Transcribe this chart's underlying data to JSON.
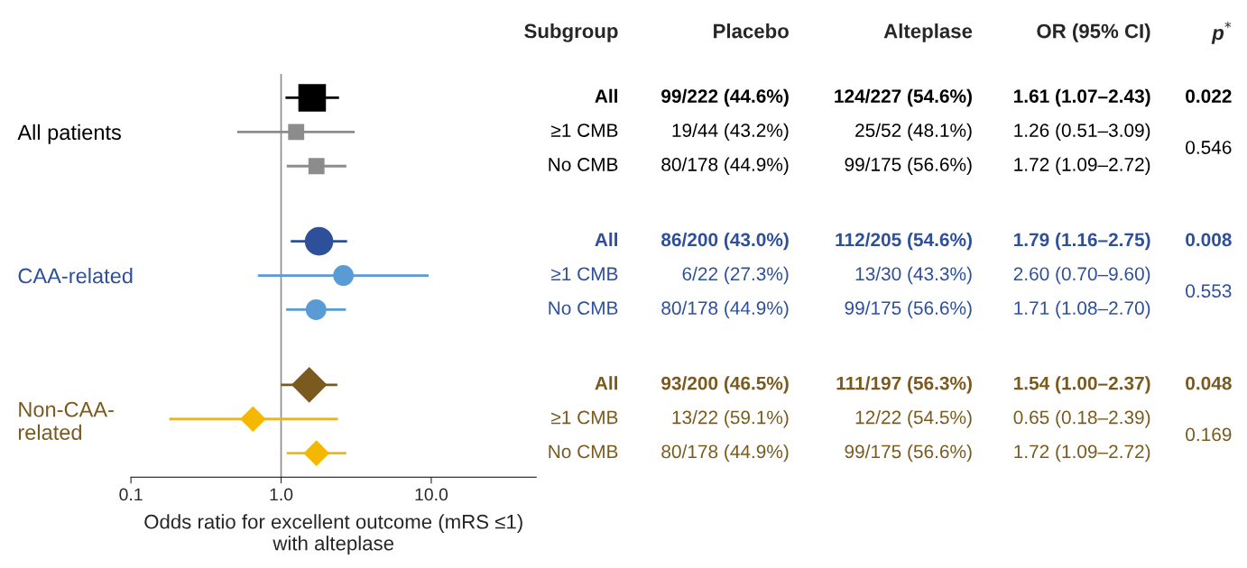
{
  "chart_data": {
    "type": "scatter",
    "orientation": "horizontal",
    "categories": [
      "All",
      "≥1 CMB",
      "No CMB",
      "All",
      "≥1 CMB",
      "No CMB",
      "All",
      "≥1 CMB",
      "No CMB"
    ],
    "series": [
      {
        "name": "All patients",
        "marker": "square",
        "colors": [
          "#000000",
          "#8c8c8c",
          "#8c8c8c",
          null,
          null,
          null,
          null,
          null,
          null
        ],
        "values": [
          1.61,
          1.26,
          1.72,
          null,
          null,
          null,
          null,
          null,
          null
        ],
        "sizes": [
          1,
          0.34,
          0.34,
          null,
          null,
          null,
          null,
          null,
          null
        ],
        "errors": [
          [
            1.07,
            2.43
          ],
          [
            0.51,
            3.09
          ],
          [
            1.09,
            2.72
          ],
          null,
          null,
          null,
          null,
          null,
          null
        ]
      },
      {
        "name": "CAA-related",
        "marker": "circle",
        "colors": [
          null,
          null,
          null,
          "#2e4f9a",
          "#5b9bd5",
          "#5b9bd5",
          null,
          null,
          null
        ],
        "values": [
          null,
          null,
          null,
          1.79,
          2.6,
          1.71,
          null,
          null,
          null
        ],
        "sizes": [
          null,
          null,
          null,
          0.84,
          0.44,
          0.44,
          null,
          null,
          null
        ],
        "errors": [
          null,
          null,
          null,
          [
            1.16,
            2.75
          ],
          [
            0.7,
            9.6
          ],
          [
            1.08,
            2.7
          ],
          null,
          null,
          null
        ]
      },
      {
        "name": "Non-CAA-related",
        "marker": "diamond",
        "colors": [
          null,
          null,
          null,
          null,
          null,
          null,
          "#7a5a1e",
          "#f5b800",
          "#f5b800"
        ],
        "values": [
          null,
          null,
          null,
          null,
          null,
          null,
          1.54,
          0.65,
          1.72
        ],
        "sizes": [
          null,
          null,
          null,
          null,
          null,
          null,
          0.84,
          0.44,
          0.44
        ],
        "errors": [
          null,
          null,
          null,
          null,
          null,
          null,
          [
            1.0,
            2.37
          ],
          [
            0.18,
            2.39
          ],
          [
            1.09,
            2.72
          ]
        ]
      }
    ],
    "xlabel": "Odds ratio for excellent outcome (mRS ≤1)\nwith alteplase",
    "log": "x",
    "xlim": [
      0.1,
      50
    ],
    "xticks": [
      {
        "value": 0.1,
        "label": "0.1"
      },
      {
        "value": 1,
        "label": "1.0"
      },
      {
        "value": 10,
        "label": "10.0"
      }
    ],
    "ref_lines": [
      {
        "axis": "x",
        "value": 1,
        "color": "#8c8c8c"
      }
    ],
    "annotations": [
      "Subgroup",
      "Placebo",
      "Alteplase",
      "OR (95% CI)",
      "p$^{*}$",
      "99/222 (44.6%)",
      "19/44 (43.2%)",
      "80/178 (44.9%)",
      "86/200 (43.0%)",
      "6/22 (27.3%)",
      "80/178 (44.9%)",
      "93/200 (46.5%)",
      "13/22 (59.1%)",
      "80/178 (44.9%)",
      "124/227 (54.6%)",
      "25/52 (48.1%)",
      "99/175 (56.6%)",
      "112/205 (54.6%)",
      "13/30 (43.3%)",
      "99/175 (56.6%)",
      "111/197 (56.3%)",
      "12/22 (54.5%)",
      "99/175 (56.6%)",
      "1.61 (1.07–2.43)",
      "1.26 (0.51–3.09)",
      "1.72 (1.09–2.72)",
      "1.79 (1.16–2.75)",
      "2.60 (0.70–9.60)",
      "1.71 (1.08–2.70)",
      "1.54 (1.00–2.37)",
      "0.65 (0.18–2.39)",
      "1.72 (1.09–2.72)",
      "0.022",
      "0.546",
      "0.008",
      "0.553",
      "0.048",
      "0.169"
    ],
    "grid": false,
    "legend": false
  }
}
